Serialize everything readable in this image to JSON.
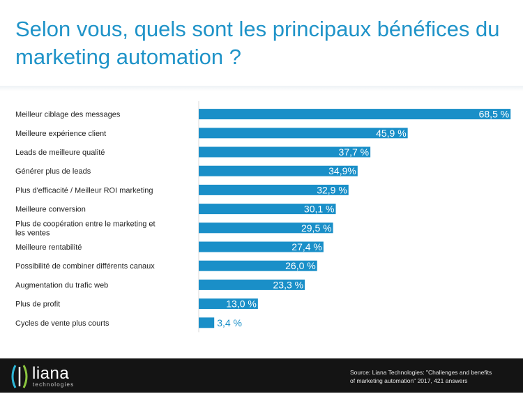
{
  "title": "Selon vous, quels sont les principaux bénéfices du marketing automation ?",
  "colors": {
    "bar": "#1a8fc8",
    "title": "#1f93c8",
    "footer": "#141414"
  },
  "chart_data": {
    "type": "bar",
    "orientation": "horizontal",
    "categories": [
      "Meilleur ciblage des messages",
      "Meilleure expérience client",
      "Leads de meilleure qualité",
      "Générer plus de leads",
      "Plus d'efficacité / Meilleur ROI marketing",
      "Meilleure conversion",
      "Plus de coopération entre le marketing et les ventes",
      "Meilleure rentabilité",
      "Possibilité de combiner différents canaux",
      "Augmentation du trafic web",
      "Plus de profit",
      "Cycles de vente plus courts"
    ],
    "category_lines": [
      [
        "Meilleur ciblage des messages"
      ],
      [
        "Meilleure expérience client"
      ],
      [
        "Leads de meilleure qualité"
      ],
      [
        "Générer plus de leads"
      ],
      [
        "Plus d'efficacité / Meilleur ROI marketing"
      ],
      [
        "Meilleure conversion"
      ],
      [
        "Plus de coopération entre le marketing et",
        "les ventes"
      ],
      [
        "Meilleure rentabilité"
      ],
      [
        "Possibilité de combiner différents canaux"
      ],
      [
        "Augmentation du trafic web"
      ],
      [
        "Plus de profit"
      ],
      [
        "Cycles de vente plus courts"
      ]
    ],
    "values": [
      68.5,
      45.9,
      37.7,
      34.9,
      32.9,
      30.1,
      29.5,
      27.4,
      26.0,
      23.3,
      13.0,
      3.4
    ],
    "labels": [
      "68,5 %",
      "45,9 %",
      "37,7 %",
      "34,9%",
      "32,9 %",
      "30,1 %",
      "29,5 %",
      "27,4 %",
      "26,0 %",
      "23,3 %",
      "13,0 %",
      "3,4 %"
    ],
    "xlim": [
      0,
      70
    ],
    "grid": false,
    "legend": "none"
  },
  "footer": {
    "logo_text": "liana",
    "logo_sub": "technologies",
    "source_line1": "Source: Liana Technologies: \"Challenges and benefits",
    "source_line2": "of marketing automation\" 2017, 421 answers"
  }
}
